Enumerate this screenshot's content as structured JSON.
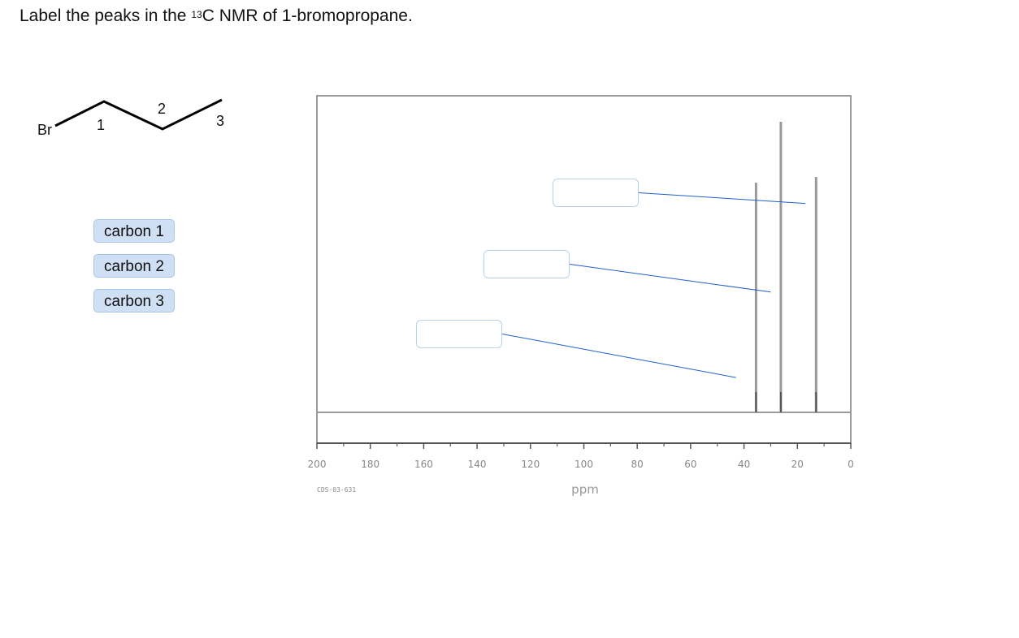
{
  "question": {
    "prefix": "Label the peaks in the ",
    "isotope_sup": "13",
    "suffix": "C NMR of 1-bromopropane."
  },
  "molecule": {
    "atoms": {
      "br": "Br",
      "c1": "1",
      "c2": "2",
      "c3": "3"
    }
  },
  "tiles": [
    {
      "label": "carbon 1"
    },
    {
      "label": "carbon 2"
    },
    {
      "label": "carbon 3"
    }
  ],
  "drop_zones": [
    {
      "value": ""
    },
    {
      "value": ""
    },
    {
      "value": ""
    }
  ],
  "chart_data": {
    "type": "line",
    "title": "",
    "xlabel": "ppm",
    "ylabel": "",
    "xlim": [
      200,
      0
    ],
    "x_reversed": true,
    "xticks": [
      "200",
      "180",
      "160",
      "140",
      "120",
      "100",
      "80",
      "60",
      "40",
      "20",
      "0"
    ],
    "peaks": [
      {
        "ppm": 35.5,
        "relative_height": 0.79
      },
      {
        "ppm": 26.2,
        "relative_height": 1.0
      },
      {
        "ppm": 13.0,
        "relative_height": 0.81
      }
    ],
    "annotation_targets_ppm": [
      17,
      30,
      43
    ],
    "annotation_target_levels": [
      0.66,
      0.38,
      0.11
    ],
    "code": "CDS-03-631",
    "colors": {
      "peak": "#9a9a9a",
      "peak_core": "#555555",
      "frame": "#9b9b9b",
      "leader": "#1f5fc9"
    }
  }
}
